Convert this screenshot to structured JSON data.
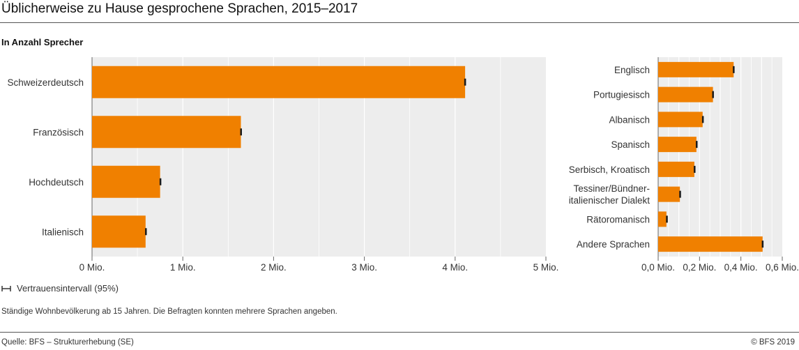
{
  "title": "Üblicherweise zu Hause gesprochene Sprachen, 2015–2017",
  "subtitle": "In Anzahl Sprecher",
  "legend": {
    "ci_label": "Vertrauensintervall (95%)"
  },
  "note": "Ständige Wohnbevölkerung ab 15 Jahren. Die Befragten konnten mehrere Sprachen angeben.",
  "source": "Quelle: BFS – Strukturerhebung (SE)",
  "copyright": "© BFS 2019",
  "colors": {
    "bar": "#F08000",
    "error": "#1a1a1a",
    "plot_bg": "#EDEDED",
    "grid": "#ffffff"
  },
  "chart_data": [
    {
      "type": "bar",
      "orientation": "horizontal",
      "categories": [
        "Schweizerdeutsch",
        "Französisch",
        "Hochdeutsch",
        "Italienisch"
      ],
      "values": [
        4.11,
        1.64,
        0.75,
        0.59
      ],
      "ci_half": [
        0.01,
        0.008,
        0.006,
        0.006
      ],
      "xlim": [
        0,
        5
      ],
      "ticks": [
        0,
        1,
        2,
        3,
        4,
        5
      ],
      "tick_labels": [
        "0 Mio.",
        "1 Mio.",
        "2 Mio.",
        "3 Mio.",
        "4 Mio.",
        "5 Mio."
      ]
    },
    {
      "type": "bar",
      "orientation": "horizontal",
      "categories": [
        "Englisch",
        "Portugiesisch",
        "Albanisch",
        "Spanisch",
        "Serbisch, Kroatisch",
        "Tessiner/Bündner-\nitalienischer Dialekt",
        "Rätoromanisch",
        "Andere Sprachen"
      ],
      "values": [
        0.365,
        0.265,
        0.215,
        0.185,
        0.175,
        0.105,
        0.04,
        0.505
      ],
      "ci_half": [
        0.004,
        0.004,
        0.003,
        0.003,
        0.003,
        0.003,
        0.002,
        0.004
      ],
      "xlim": [
        0,
        0.6
      ],
      "ticks": [
        0,
        0.2,
        0.4,
        0.6
      ],
      "tick_labels": [
        "0,0 Mio.",
        "0,2 Mio.",
        "0,4 Mio.",
        "0,6 Mio."
      ]
    }
  ]
}
